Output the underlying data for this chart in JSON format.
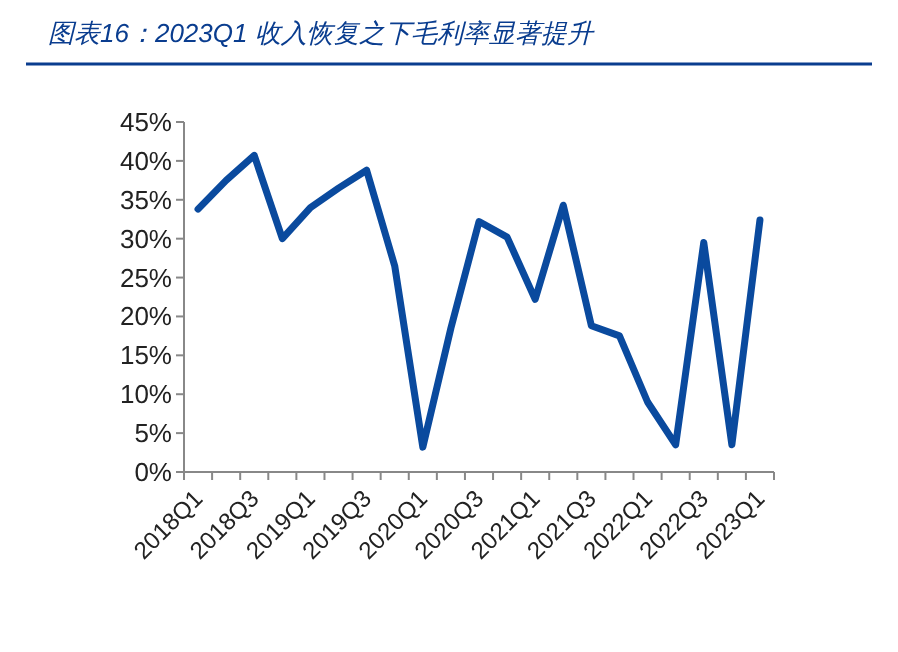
{
  "chart_data": {
    "type": "line",
    "title": "图表16：2023Q1 收入恢复之下毛利率显著提升",
    "categories": [
      "2018Q1",
      null,
      "2018Q3",
      null,
      "2019Q1",
      null,
      "2019Q3",
      null,
      "2020Q1",
      null,
      "2020Q3",
      null,
      "2021Q1",
      null,
      "2021Q3",
      null,
      "2022Q1",
      null,
      "2022Q3",
      null,
      "2023Q1"
    ],
    "series": [
      {
        "color": "#0a4a9e",
        "values": [
          33.8,
          37.5,
          40.7,
          30.0,
          34.0,
          36.5,
          38.8,
          26.5,
          3.2,
          18.5,
          32.2,
          30.2,
          22.2,
          34.3,
          18.8,
          17.5,
          9.0,
          3.5,
          29.5,
          3.5,
          32.4
        ]
      }
    ],
    "ylim": [
      0,
      45
    ],
    "yticks": [
      {
        "value": 0,
        "label": "0%"
      },
      {
        "value": 5,
        "label": "5%"
      },
      {
        "value": 10,
        "label": "10%"
      },
      {
        "value": 15,
        "label": "15%"
      },
      {
        "value": 20,
        "label": "20%"
      },
      {
        "value": 25,
        "label": "25%"
      },
      {
        "value": 30,
        "label": "30%"
      },
      {
        "value": 35,
        "label": "35%"
      },
      {
        "value": 40,
        "label": "40%"
      },
      {
        "value": 45,
        "label": "45%"
      }
    ],
    "grid": false,
    "marker": "none",
    "line_style": "solid"
  }
}
